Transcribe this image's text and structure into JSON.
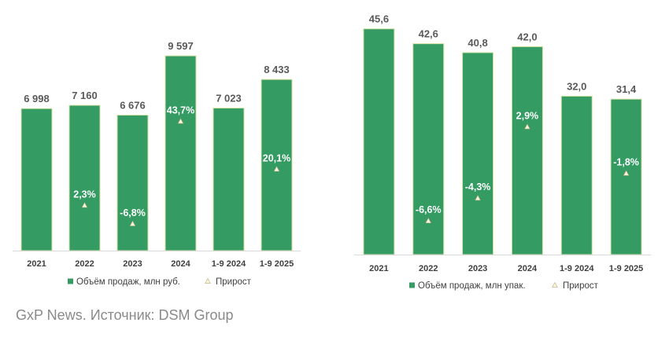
{
  "source_text": "GxP News. Источник: DSM Group",
  "colors": {
    "bar": "#349b63",
    "bar_edge": "#d3e2a4",
    "marker": "#fbf4dc",
    "marker_edge": "#b9ab7f",
    "axis": "#d9d9d9"
  },
  "chart_data": [
    {
      "type": "bar",
      "categories": [
        "2021",
        "2022",
        "2023",
        "2024",
        "1-9 2024",
        "1-9 2025"
      ],
      "series": [
        {
          "name": "Объём продаж, млн руб.",
          "values": [
            6998,
            7160,
            6676,
            9597,
            7023,
            8433
          ],
          "labels": [
            "6 998",
            "7 160",
            "6 676",
            "9 597",
            "7 023",
            "8 433"
          ]
        },
        {
          "name": "Прирост",
          "axis": "secondary",
          "marker": "triangle",
          "values": [
            null,
            2.3,
            -6.8,
            43.7,
            null,
            20.1
          ],
          "labels": [
            null,
            "2,3%",
            "-6,8%",
            "43,7%",
            null,
            "20,1%"
          ]
        }
      ],
      "ylim": [
        0,
        12000
      ],
      "y2lim": [
        -20,
        100
      ],
      "grid": false,
      "legend": "bottom"
    },
    {
      "type": "bar",
      "categories": [
        "2021",
        "2022",
        "2023",
        "2024",
        "1-9 2024",
        "1-9 2025"
      ],
      "series": [
        {
          "name": "Объём продаж, млн упак.",
          "values": [
            45.6,
            42.6,
            40.8,
            42.0,
            32.0,
            31.4
          ],
          "labels": [
            "45,6",
            "42,6",
            "40,8",
            "42,0",
            "32,0",
            "31,4"
          ]
        },
        {
          "name": "Прирост",
          "axis": "secondary",
          "marker": "triangle",
          "values": [
            null,
            -6.6,
            -4.3,
            2.9,
            null,
            -1.8
          ],
          "labels": [
            null,
            "-6,6%",
            "-4,3%",
            "2,9%",
            null,
            "-1,8%"
          ]
        }
      ],
      "ylim": [
        0,
        50
      ],
      "y2lim": [
        -10,
        15
      ],
      "grid": false,
      "legend": "bottom"
    }
  ]
}
